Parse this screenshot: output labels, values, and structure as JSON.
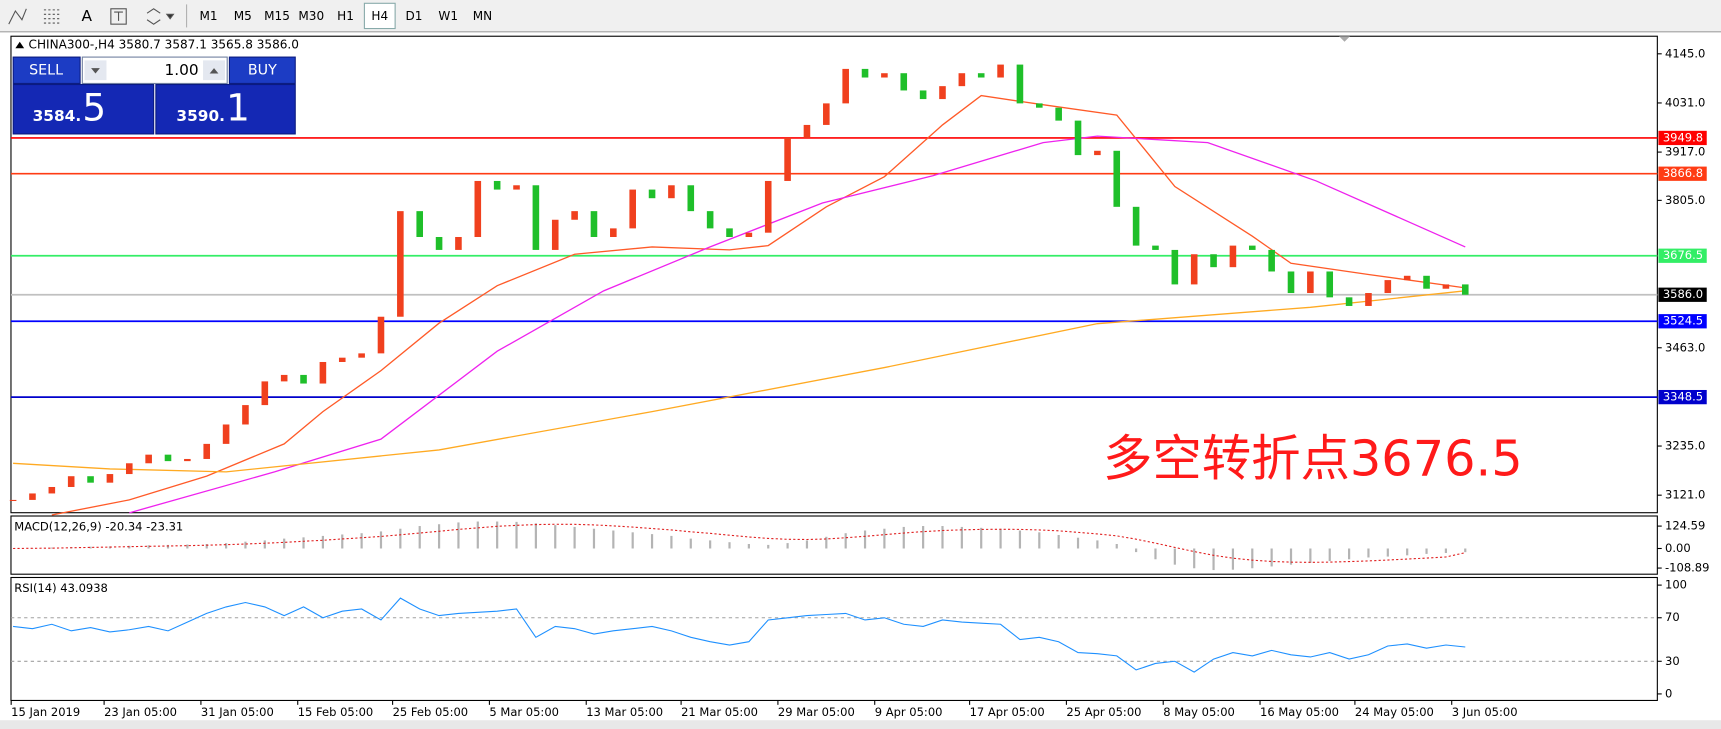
{
  "toolbar": {
    "text_tool": "A",
    "timeframes": [
      "M1",
      "M5",
      "M15",
      "M30",
      "H1",
      "H4",
      "D1",
      "W1",
      "MN"
    ]
  },
  "symbol_header": "CHINA300-,H4  3580.7 3587.1 3565.8 3586.0",
  "trade_panel": {
    "sell": "SELL",
    "lot": "1.00",
    "buy": "BUY",
    "bid_main": "3584.",
    "bid_big": "5",
    "ask_main": "3590.",
    "ask_big": "1"
  },
  "annotation": "多空转折点3676.5",
  "chart_data": [
    {
      "type": "candlestick",
      "x": [
        0,
        1,
        2,
        3,
        4,
        5,
        6,
        7,
        8,
        9,
        10,
        11,
        12,
        13,
        14,
        15,
        16,
        17,
        18,
        19,
        20,
        21,
        22,
        23,
        24,
        25,
        26,
        27,
        28,
        29,
        30,
        31,
        32,
        33,
        34,
        35,
        36,
        37,
        38,
        39,
        40,
        41,
        42,
        43,
        44,
        45,
        46,
        47,
        48,
        49,
        50,
        51,
        52,
        53,
        54,
        55,
        56,
        57,
        58,
        59,
        60,
        61,
        62,
        63,
        64,
        65,
        66,
        67,
        68,
        69,
        70,
        71,
        72,
        73,
        74,
        75
      ],
      "values": [
        3110,
        3125,
        3140,
        3165,
        3150,
        3170,
        3195,
        3215,
        3200,
        3205,
        3240,
        3285,
        3330,
        3385,
        3400,
        3380,
        3430,
        3440,
        3450,
        3535,
        3780,
        3720,
        3690,
        3720,
        3850,
        3830,
        3840,
        3690,
        3760,
        3780,
        3720,
        3740,
        3830,
        3810,
        3840,
        3780,
        3740,
        3720,
        3730,
        3850,
        3950,
        3980,
        4030,
        4110,
        4090,
        4100,
        4060,
        4040,
        4070,
        4100,
        4090,
        4120,
        4030,
        4020,
        3990,
        3910,
        3920,
        3790,
        3700,
        3690,
        3610,
        3680,
        3650,
        3700,
        3690,
        3640,
        3590,
        3640,
        3580,
        3560,
        3590,
        3620,
        3630,
        3600,
        3610,
        3586
      ],
      "up_color": "#f0401e",
      "down_color": "#1fbf2a",
      "lines": [
        {
          "color": "#ff5a28",
          "x": [
            2,
            6,
            10,
            14,
            16,
            19,
            22,
            25,
            29,
            33,
            37,
            39,
            42,
            45,
            48,
            50,
            53,
            57,
            60,
            64,
            66,
            70,
            75
          ],
          "values": [
            3075,
            3110,
            3165,
            3240,
            3315,
            3410,
            3520,
            3607,
            3680,
            3697,
            3690,
            3700,
            3790,
            3860,
            3980,
            4048,
            4028,
            4003,
            3837,
            3722,
            3659,
            3633,
            3602
          ]
        },
        {
          "color": "#ee22ee",
          "x": [
            6,
            13.5,
            19,
            25,
            30.5,
            36,
            41.8,
            47.5,
            53.2,
            56,
            61.7,
            67.3,
            75
          ],
          "values": [
            3080,
            3175,
            3251,
            3455,
            3595,
            3697,
            3799,
            3862,
            3939,
            3954,
            3939,
            3850,
            3697
          ]
        },
        {
          "color": "#ffaa22",
          "x": [
            0,
            5,
            11,
            22,
            33,
            45,
            56,
            67,
            75
          ],
          "values": [
            3195,
            3182,
            3175,
            3226,
            3315,
            3417,
            3519,
            3557,
            3595
          ]
        }
      ],
      "levels": [
        {
          "value": 3949.8,
          "color": "#ff0000"
        },
        {
          "value": 3866.8,
          "color": "#ff3c14"
        },
        {
          "value": 3676.5,
          "color": "#33ee66"
        },
        {
          "value": 3586,
          "label": "3586.0",
          "color": "#000000"
        },
        {
          "value": 3524.5,
          "color": "#0000ff"
        },
        {
          "value": 3348.5,
          "color": "#0000cc"
        }
      ],
      "xlim": [
        -0.11,
        84.92
      ],
      "ylim": [
        3080.3,
        4185.8
      ],
      "yticks": [
        {
          "value": 4145,
          "label": "4145.0"
        },
        {
          "value": 4031,
          "label": "4031.0"
        },
        {
          "value": 3917,
          "label": "3917.0"
        },
        {
          "value": 3805,
          "label": "3805.0"
        },
        {
          "value": 3463,
          "label": "3463.0"
        },
        {
          "value": 3235,
          "label": "3235.0"
        },
        {
          "value": 3121,
          "label": "3121.0"
        }
      ],
      "xticks": [
        {
          "value": -0.1,
          "label": "15 Jan 2019"
        },
        {
          "value": 4.7,
          "label": "23 Jan 05:00"
        },
        {
          "value": 9.7,
          "label": "31 Jan 05:00"
        },
        {
          "value": 14.7,
          "label": "15 Feb 05:00"
        },
        {
          "value": 19.6,
          "label": "25 Feb 05:00"
        },
        {
          "value": 24.6,
          "label": "5 Mar 05:00"
        },
        {
          "value": 29.6,
          "label": "13 Mar 05:00"
        },
        {
          "value": 34.5,
          "label": "21 Mar 05:00"
        },
        {
          "value": 39.5,
          "label": "29 Mar 05:00"
        },
        {
          "value": 44.5,
          "label": "9 Apr 05:00"
        },
        {
          "value": 49.4,
          "label": "17 Apr 05:00"
        },
        {
          "value": 54.4,
          "label": "25 Apr 05:00"
        },
        {
          "value": 59.4,
          "label": "8 May 05:00"
        },
        {
          "value": 64.4,
          "label": "16 May 05:00"
        },
        {
          "value": 69.3,
          "label": "24 May 05:00"
        },
        {
          "value": 74.3,
          "label": "3 Jun 05:00"
        }
      ]
    },
    {
      "type": "macd",
      "title": "MACD(12,26,9) -20.34 -23.31",
      "ylim": [
        -143,
        180.7
      ],
      "yticks": [
        124.59,
        {
          "value": 0,
          "label": "0.00"
        },
        -108.89
      ],
      "series": [
        {
          "color": "#b4b4b4",
          "values": [
            0,
            2,
            5,
            8,
            10,
            12,
            15,
            18,
            20,
            22,
            25,
            30,
            38,
            45,
            55,
            62,
            70,
            78,
            85,
            95,
            110,
            125,
            135,
            145,
            150,
            150,
            148,
            140,
            130,
            120,
            110,
            100,
            90,
            80,
            70,
            55,
            45,
            35,
            25,
            20,
            30,
            45,
            65,
            85,
            100,
            110,
            120,
            125,
            125,
            120,
            115,
            110,
            100,
            90,
            75,
            60,
            45,
            25,
            -20,
            -60,
            -90,
            -110,
            -120,
            -118,
            -110,
            -100,
            -90,
            -80,
            -70,
            -60,
            -50,
            -45,
            -38,
            -30,
            -25,
            -20.34
          ]
        },
        {
          "color": "#e02020",
          "values": [
            0,
            1,
            2,
            4,
            6,
            8,
            10,
            12,
            14,
            16,
            18,
            21,
            25,
            29,
            34,
            40,
            46,
            53,
            60,
            67,
            76,
            86,
            96,
            106,
            115,
            123,
            129,
            133,
            135,
            134,
            131,
            126,
            119,
            111,
            103,
            93,
            84,
            74,
            64,
            56,
            51,
            50,
            53,
            60,
            68,
            77,
            86,
            94,
            100,
            104,
            106,
            107,
            106,
            103,
            98,
            90,
            81,
            70,
            52,
            30,
            6,
            -17,
            -38,
            -54,
            -65,
            -72,
            -76,
            -77,
            -76,
            -73,
            -69,
            -64,
            -59,
            -53,
            -47,
            -23.31
          ]
        }
      ]
    },
    {
      "type": "rsi",
      "title": "RSI(14) 43.0938",
      "ylim": [
        -6,
        107
      ],
      "yticks": [
        100,
        70,
        30,
        0
      ],
      "series": [
        {
          "color": "#1e90ff",
          "values": [
            62,
            60,
            64,
            58,
            61,
            57,
            59,
            62,
            58,
            66,
            74,
            80,
            84,
            80,
            72,
            80,
            70,
            76,
            78,
            68,
            88,
            78,
            72,
            74,
            75,
            76,
            78,
            52,
            62,
            60,
            55,
            58,
            60,
            62,
            58,
            52,
            48,
            45,
            48,
            68,
            70,
            72,
            73,
            74,
            68,
            70,
            64,
            62,
            68,
            66,
            65,
            64,
            50,
            52,
            48,
            38,
            37,
            35,
            22,
            28,
            30,
            20,
            32,
            38,
            35,
            40,
            36,
            34,
            38,
            32,
            36,
            44,
            46,
            42,
            45,
            43.0938
          ]
        }
      ]
    }
  ]
}
